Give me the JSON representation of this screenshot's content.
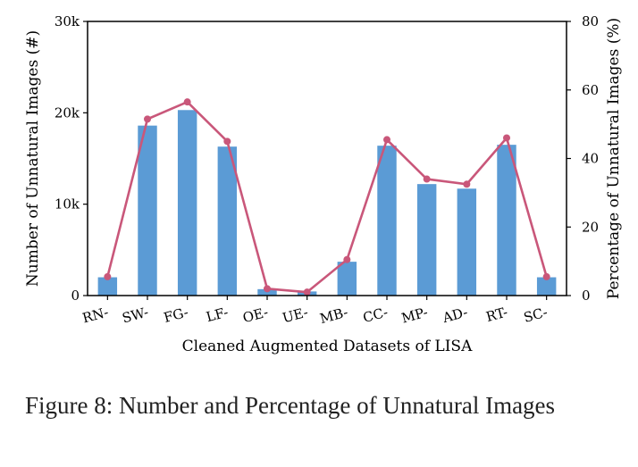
{
  "chart_data": {
    "type": "bar+line",
    "categories": [
      "RN-",
      "SW-",
      "FG-",
      "LF-",
      "OE-",
      "UE-",
      "MB-",
      "CC-",
      "MP-",
      "AD-",
      "RT-",
      "SC-"
    ],
    "series": [
      {
        "name": "Number of Unnatural Images",
        "kind": "bar",
        "axis": "left",
        "color": "#5b9bd5",
        "values": [
          2000,
          18600,
          20300,
          16300,
          700,
          450,
          3700,
          16400,
          12200,
          11700,
          16500,
          2000
        ]
      },
      {
        "name": "Percentage of Unnatural Images",
        "kind": "line",
        "axis": "right",
        "color": "#c9577a",
        "values": [
          5.5,
          51.5,
          56.5,
          45,
          2,
          1,
          10.5,
          45.5,
          34,
          32.5,
          46,
          5.5
        ]
      }
    ],
    "xlabel": "Cleaned Augmented Datasets of LISA",
    "ylabel": "Number of Unnatural Images (#)",
    "ylabel_right": "Percentage of Unnatural Images (%)",
    "ylim": [
      0,
      30000
    ],
    "ylim_right": [
      0,
      80
    ],
    "yticks": [
      0,
      10000,
      20000,
      30000
    ],
    "ytick_labels": [
      "0",
      "10k",
      "20k",
      "30k"
    ],
    "yticks_right": [
      0,
      20,
      40,
      60,
      80
    ],
    "ytick_labels_right": [
      "0",
      "20",
      "40",
      "60",
      "80"
    ],
    "grid": false
  },
  "caption": "Figure 8: Number and Percentage of Unnatural Images"
}
